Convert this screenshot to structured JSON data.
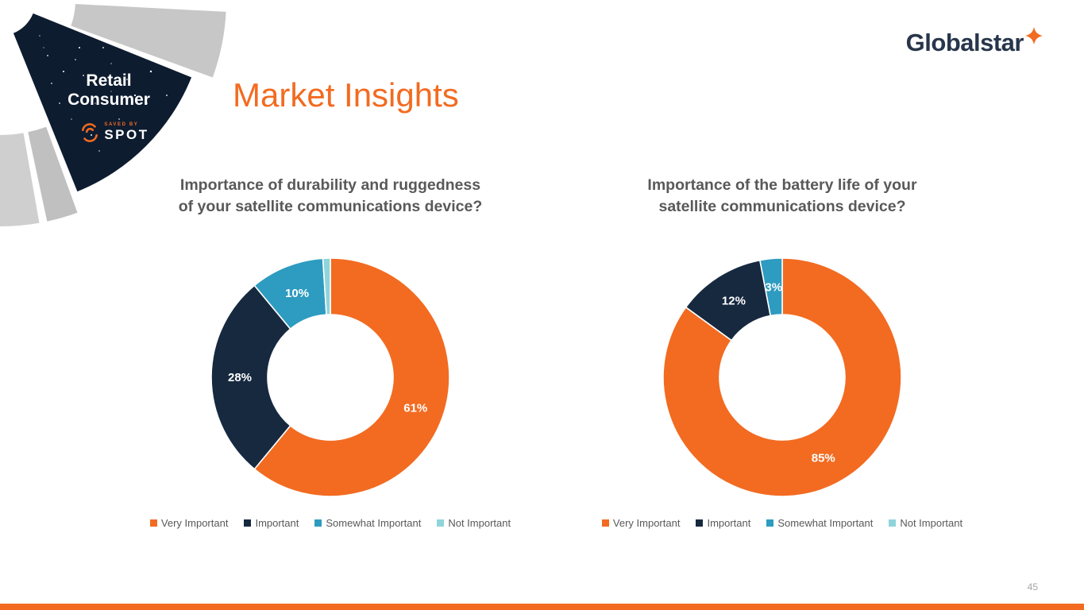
{
  "slide": {
    "title": "Market Insights",
    "page_number": "45"
  },
  "branding": {
    "wordmark": "Globalstar",
    "segment_line1": "Retail",
    "segment_line2": "Consumer",
    "spot_tagline": "SAVED BY",
    "spot_name": "SPOT"
  },
  "colors": {
    "orange": "#F26B21",
    "navy": "#16293F",
    "teal": "#2E9BC0",
    "light_teal": "#8FD4DB",
    "title_gray": "#595959"
  },
  "chart_data": [
    {
      "type": "pie",
      "donut": true,
      "title_lines": [
        "Importance of durability and ruggedness",
        "of your satellite communications device?"
      ],
      "categories": [
        "Very Important",
        "Important",
        "Somewhat Important",
        "Not Important"
      ],
      "values": [
        61,
        28,
        10,
        1
      ],
      "data_labels": [
        "61%",
        "28%",
        "10%",
        ""
      ],
      "colors": [
        "#F26B21",
        "#16293F",
        "#2E9BC0",
        "#8FD4DB"
      ],
      "start_angle_deg": -90,
      "direction": "clockwise",
      "legend_position": "bottom"
    },
    {
      "type": "pie",
      "donut": true,
      "title_lines": [
        "Importance of the battery life of your",
        "satellite communications device?"
      ],
      "categories": [
        "Very Important",
        "Important",
        "Somewhat Important",
        "Not Important"
      ],
      "values": [
        85,
        12,
        3,
        0
      ],
      "data_labels": [
        "85%",
        "12%",
        "3%",
        ""
      ],
      "colors": [
        "#F26B21",
        "#16293F",
        "#2E9BC0",
        "#8FD4DB"
      ],
      "start_angle_deg": -90,
      "direction": "clockwise",
      "legend_position": "bottom"
    }
  ]
}
